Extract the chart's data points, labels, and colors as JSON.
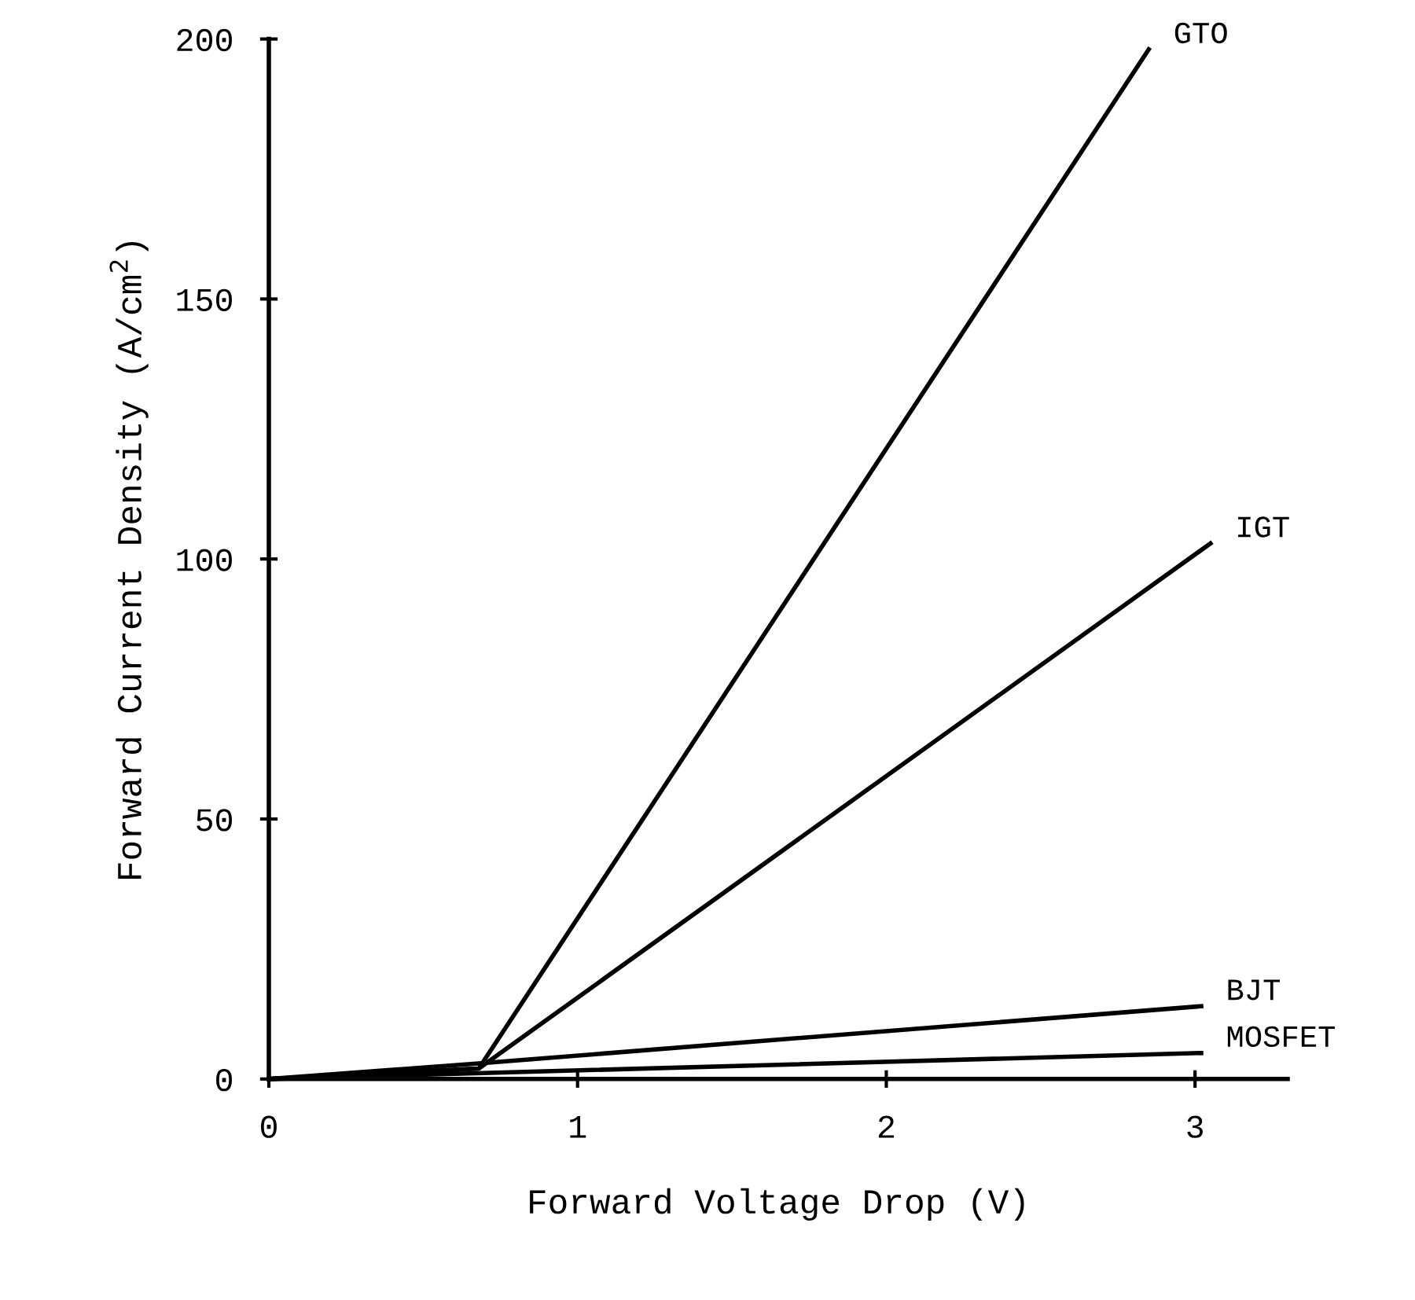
{
  "chart_data": {
    "type": "line",
    "xlabel": "Forward Voltage Drop (V)",
    "ylabel": "Forward Current Density (A/cm$^{2}$)",
    "xlim": [
      0,
      3.3
    ],
    "ylim": [
      0,
      200
    ],
    "xticks": [
      0,
      1,
      2,
      3
    ],
    "yticks": [
      0,
      50,
      100,
      150,
      200
    ],
    "grid": false,
    "legend": false,
    "marker": "none",
    "line_style": "solid",
    "series": [
      {
        "name": "GTO",
        "color": "#000000",
        "x": [
          0,
          0.68,
          2.85
        ],
        "values": [
          0,
          2,
          198
        ]
      },
      {
        "name": "IGT",
        "color": "#000000",
        "x": [
          0,
          0.68,
          3.05
        ],
        "values": [
          0,
          2,
          103
        ]
      },
      {
        "name": "BJT",
        "color": "#000000",
        "x": [
          0,
          0.68,
          3.02
        ],
        "values": [
          0,
          3,
          14
        ]
      },
      {
        "name": "MOSFET",
        "color": "#000000",
        "x": [
          0,
          3.02
        ],
        "values": [
          0,
          5
        ]
      }
    ]
  }
}
